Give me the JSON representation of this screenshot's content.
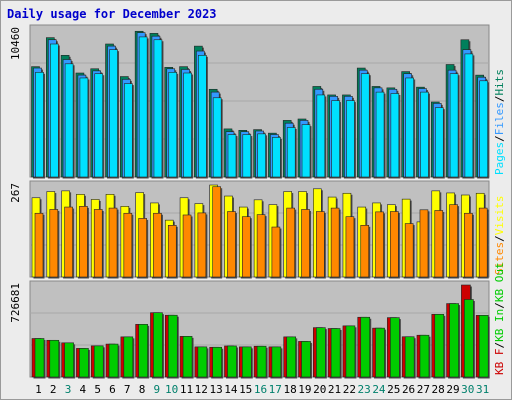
{
  "title": "Daily usage for December 2023",
  "colors": {
    "pages": "#00e0ff",
    "files": "#3399ff",
    "hits": "#00805c",
    "visits": "#ffff00",
    "sites": "#ff8800",
    "kbin": "#00cc00",
    "kbout": "#cc0000",
    "weekend_label": "#00806c",
    "day_label": "#000000"
  },
  "chart_data": [
    {
      "type": "bar",
      "panel": "hits-files-pages",
      "ymax_label": "10460",
      "ymax": 10460,
      "legend": [
        "Pages",
        "Files",
        "Hits"
      ],
      "categories": [
        "1",
        "2",
        "3",
        "4",
        "5",
        "6",
        "7",
        "8",
        "9",
        "10",
        "11",
        "12",
        "13",
        "14",
        "15",
        "16",
        "17",
        "18",
        "19",
        "20",
        "21",
        "22",
        "23",
        "24",
        "25",
        "26",
        "27",
        "28",
        "29",
        "30",
        "31"
      ],
      "weekend_days": [
        3,
        9,
        10,
        16,
        17,
        23,
        24,
        30,
        31
      ],
      "series": [
        {
          "name": "Hits",
          "values": [
            7800,
            9850,
            8600,
            7350,
            7650,
            9400,
            7100,
            10300,
            10150,
            7750,
            7800,
            9250,
            6200,
            3400,
            3300,
            3350,
            3100,
            4000,
            4100,
            6400,
            5800,
            5800,
            7700,
            6400,
            6300,
            7450,
            6350,
            5300,
            7950,
            9700,
            7200
          ]
        },
        {
          "name": "Files",
          "values": [
            7700,
            9700,
            8300,
            7200,
            7500,
            9250,
            6900,
            10200,
            9950,
            7650,
            7600,
            8900,
            6000,
            3200,
            3200,
            3250,
            3000,
            3800,
            4000,
            6200,
            5700,
            5700,
            7550,
            6300,
            6200,
            7300,
            6250,
            5200,
            7550,
            9000,
            7050
          ]
        },
        {
          "name": "Pages",
          "values": [
            7400,
            9400,
            8000,
            7000,
            7300,
            9000,
            6600,
            9900,
            9700,
            7400,
            7350,
            8600,
            5600,
            3000,
            3000,
            3050,
            2800,
            3500,
            3700,
            5800,
            5400,
            5400,
            7300,
            6000,
            5900,
            7000,
            6000,
            4900,
            7300,
            8700,
            6800
          ]
        }
      ]
    },
    {
      "type": "bar",
      "panel": "visits-sites",
      "ymax_label": "267",
      "ymax": 267,
      "legend": [
        "Sites",
        "Visits"
      ],
      "series": [
        {
          "name": "Visits",
          "values": [
            230,
            248,
            250,
            240,
            225,
            240,
            205,
            245,
            215,
            165,
            230,
            213,
            267,
            235,
            203,
            224,
            210,
            248,
            248,
            256,
            232,
            243,
            203,
            215,
            210,
            226,
            160,
            250,
            244,
            238,
            243
          ]
        },
        {
          "name": "Sites",
          "values": [
            185,
            196,
            203,
            205,
            196,
            200,
            185,
            170,
            185,
            150,
            180,
            186,
            262,
            190,
            175,
            181,
            145,
            200,
            196,
            190,
            200,
            175,
            150,
            189,
            190,
            155,
            195,
            193,
            210,
            185,
            200
          ]
        }
      ]
    },
    {
      "type": "bar",
      "panel": "kbin-kbout",
      "ymax_label": "726681",
      "ymax": 726681,
      "legend": [
        "KB F",
        "KB In",
        "KB Out"
      ],
      "series": [
        {
          "name": "KB In",
          "values": [
            304000,
            290000,
            270000,
            226000,
            246000,
            260000,
            317000,
            416000,
            508000,
            488000,
            321000,
            238000,
            235000,
            245000,
            238000,
            243000,
            238000,
            317000,
            281000,
            390000,
            383000,
            404000,
            472000,
            386000,
            469000,
            318000,
            330000,
            495000,
            580000,
            612000,
            487000
          ]
        },
        {
          "name": "KB F",
          "values": [
            304000,
            290000,
            270000,
            226000,
            246000,
            260000,
            317000,
            416000,
            508000,
            488000,
            321000,
            238000,
            235000,
            245000,
            238000,
            243000,
            238000,
            317000,
            281000,
            390000,
            383000,
            404000,
            472000,
            386000,
            469000,
            318000,
            330000,
            495000,
            580000,
            726681,
            487000
          ]
        }
      ]
    }
  ]
}
